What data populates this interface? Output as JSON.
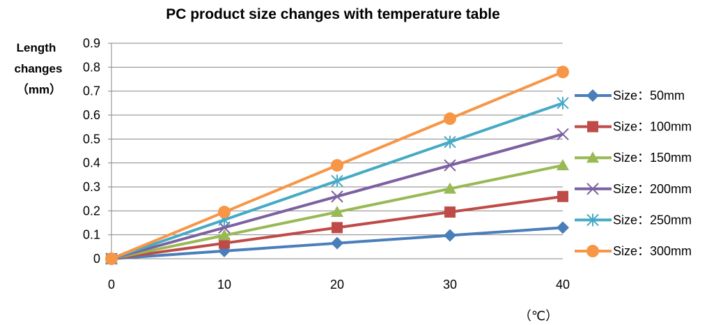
{
  "chart_data": {
    "type": "line",
    "title": "PC product size changes with temperature  table",
    "ylabel": [
      "Length",
      "changes",
      "（mm）"
    ],
    "xlabel": "（℃）",
    "x": [
      0,
      10,
      20,
      30,
      40
    ],
    "xlim": [
      0,
      40
    ],
    "ylim": [
      0,
      0.9
    ],
    "x_ticks": [
      "0",
      "10",
      "20",
      "30",
      "40"
    ],
    "y_ticks": [
      "0",
      "0.1",
      "0.2",
      "0.3",
      "0.4",
      "0.5",
      "0.6",
      "0.7",
      "0.8",
      "0.9"
    ],
    "grid": "horizontal",
    "legend_position": "right",
    "series": [
      {
        "name": "Size：50mm",
        "color": "#4a7ebb",
        "marker": "diamond",
        "values": [
          0,
          0.0325,
          0.065,
          0.0975,
          0.13
        ]
      },
      {
        "name": "Size：100mm",
        "color": "#be4b48",
        "marker": "square",
        "values": [
          0,
          0.065,
          0.13,
          0.195,
          0.26
        ]
      },
      {
        "name": "Size：150mm",
        "color": "#98b954",
        "marker": "triangle",
        "values": [
          0,
          0.0975,
          0.195,
          0.2925,
          0.39
        ]
      },
      {
        "name": "Size：200mm",
        "color": "#7d60a0",
        "marker": "x",
        "values": [
          0,
          0.13,
          0.26,
          0.39,
          0.52
        ]
      },
      {
        "name": "Size：250mm",
        "color": "#46aac5",
        "marker": "star",
        "values": [
          0,
          0.1625,
          0.325,
          0.4875,
          0.65
        ]
      },
      {
        "name": "Size：300mm",
        "color": "#f79646",
        "marker": "circle",
        "values": [
          0,
          0.195,
          0.39,
          0.585,
          0.78
        ]
      }
    ]
  }
}
